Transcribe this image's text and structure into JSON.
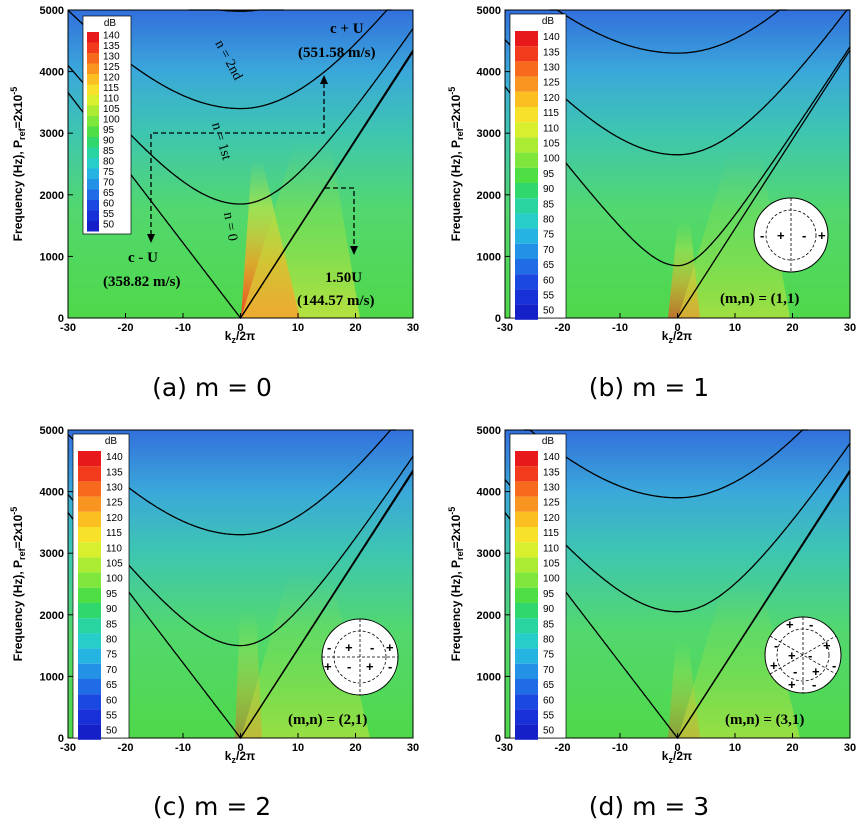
{
  "colorbar": {
    "unit": "dB",
    "ticks": [
      140,
      135,
      130,
      125,
      120,
      115,
      110,
      105,
      100,
      95,
      90,
      85,
      80,
      75,
      70,
      65,
      60,
      55,
      50
    ],
    "colors": [
      "#e8191a",
      "#f23b1c",
      "#f76a1e",
      "#fa9420",
      "#fbbf22",
      "#f7e12a",
      "#d8ef2e",
      "#aceb34",
      "#7fe63c",
      "#4fdf44",
      "#2fd76d",
      "#29d4a0",
      "#27cdc9",
      "#25b3e2",
      "#2391e6",
      "#206ce6",
      "#1c48e2",
      "#1830d8",
      "#1620c8"
    ]
  },
  "caption_labels": [
    "(a) m = 0",
    "(b) m = 1",
    "(c) m = 2",
    "(d) m = 3"
  ],
  "annotations": {
    "n2": "n = 2nd",
    "n1": "n = 1st",
    "n0": "n = 0",
    "cpu": "c + U",
    "cpu_val": "(551.58 m/s)",
    "cmu": "c - U",
    "cmu_val": "(358.82 m/s)",
    "conv": "1.50U",
    "conv_val": "(144.57 m/s)"
  },
  "mode_labels": [
    "(m,n) = (1,1)",
    "(m,n) = (2,1)",
    "(m,n) = (3,1)"
  ],
  "chart_data": [
    {
      "type": "heatmap",
      "xlabel": "kz/2π",
      "ylabel": "Frequency (Hz), Pref=2x10-5",
      "xlim": [
        -30,
        30
      ],
      "ylim": [
        0,
        5000
      ],
      "xticks": [
        -30,
        -20,
        -10,
        0,
        10,
        20,
        30
      ],
      "yticks": [
        0,
        1000,
        2000,
        3000,
        4000,
        5000
      ],
      "m": 0,
      "cutoff_hz": [
        0,
        1850,
        3400,
        4980
      ],
      "lines": {
        "c_plus_U_ms": 551.58,
        "c_minus_U_ms": 358.82,
        "convective_ms": 144.57
      }
    },
    {
      "type": "heatmap",
      "xlabel": "kz/2π",
      "ylabel": "Frequency (Hz), Pref=2x10-5",
      "xlim": [
        -30,
        30
      ],
      "ylim": [
        0,
        5000
      ],
      "xticks": [
        -30,
        -20,
        -10,
        0,
        10,
        20,
        30
      ],
      "yticks": [
        0,
        1000,
        2000,
        3000,
        4000,
        5000
      ],
      "m": 1,
      "mode": "(m,n) = (1,1)",
      "cutoff_hz": [
        850,
        2650,
        4300
      ]
    },
    {
      "type": "heatmap",
      "xlabel": "kz/2π",
      "ylabel": "Frequency (Hz), Pref=2x10-5",
      "xlim": [
        -30,
        30
      ],
      "ylim": [
        0,
        5000
      ],
      "xticks": [
        -30,
        -20,
        -10,
        0,
        10,
        20,
        30
      ],
      "yticks": [
        0,
        1000,
        2000,
        3000,
        4000,
        5000
      ],
      "m": 2,
      "mode": "(m,n) = (2,1)",
      "cutoff_hz": [
        0,
        1500,
        3300
      ]
    },
    {
      "type": "heatmap",
      "xlabel": "kz/2π",
      "ylabel": "Frequency (Hz), Pref=2x10-5",
      "xlim": [
        -30,
        30
      ],
      "ylim": [
        0,
        5000
      ],
      "xticks": [
        -30,
        -20,
        -10,
        0,
        10,
        20,
        30
      ],
      "yticks": [
        0,
        1000,
        2000,
        3000,
        4000,
        5000
      ],
      "m": 3,
      "mode": "(m,n) = (3,1)",
      "cutoff_hz": [
        0,
        2050,
        3900
      ]
    }
  ]
}
